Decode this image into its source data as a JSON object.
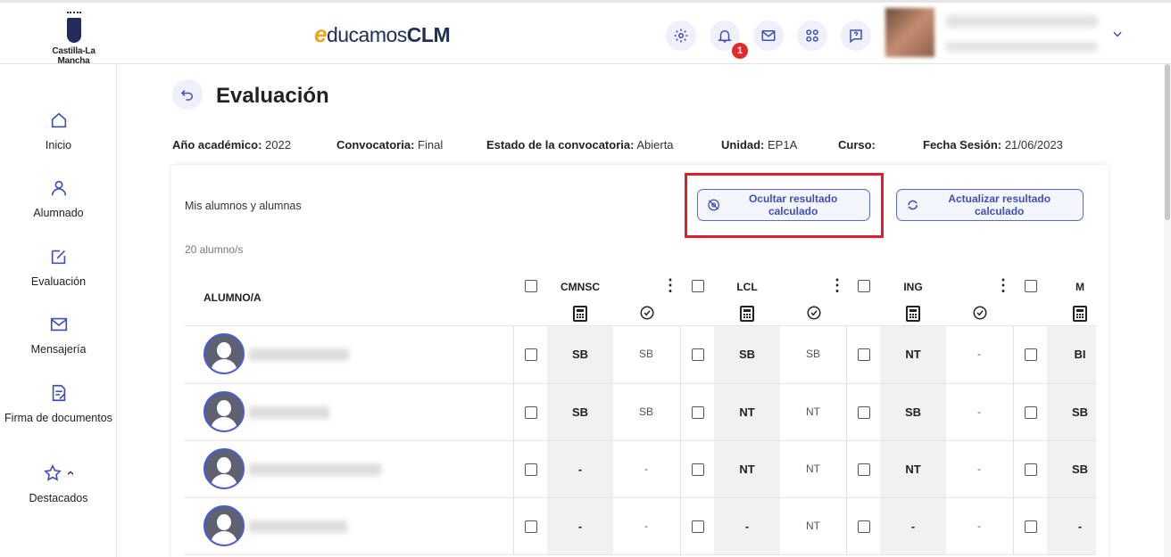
{
  "header": {
    "region_logo_text": "Castilla-La Mancha",
    "brand": {
      "e": "e",
      "mid": "ducamos",
      "bold": "CLM"
    },
    "notifications_count": "1",
    "icons": [
      "gear-icon",
      "bell-icon",
      "mail-icon",
      "apps-icon",
      "help-chat-icon",
      "chevron-down-icon"
    ]
  },
  "sidebar": {
    "items": [
      {
        "label": "Inicio",
        "icon": "home-icon"
      },
      {
        "label": "Alumnado",
        "icon": "user-icon"
      },
      {
        "label": "Evaluación",
        "icon": "edit-icon"
      },
      {
        "label": "Mensajería",
        "icon": "mail-icon"
      },
      {
        "label": "Firma de documentos",
        "icon": "sign-doc-icon"
      },
      {
        "label": "Destacados",
        "icon": "star-icon"
      }
    ]
  },
  "page": {
    "title": "Evaluación",
    "info": [
      {
        "label": "Año académico:",
        "value": "2022"
      },
      {
        "label": "Convocatoria:",
        "value": "Final"
      },
      {
        "label": "Estado de la convocatoria:",
        "value": "Abierta"
      },
      {
        "label": "Unidad:",
        "value": "EP1A"
      },
      {
        "label": "Curso:",
        "value": ""
      },
      {
        "label": "Fecha Sesión:",
        "value": "21/06/2023"
      }
    ]
  },
  "card": {
    "label": "Mis alumnos y alumnas",
    "count": "20 alumno/s",
    "hide_button": "Ocultar resultado calculado",
    "update_button": "Actualizar resultado calculado",
    "highlight_color": "#e01e2a"
  },
  "table": {
    "student_header": "ALUMNO/A",
    "subjects": [
      "CMNSC",
      "LCL",
      "ING",
      "M"
    ],
    "rows": [
      {
        "grades": [
          [
            "SB",
            "SB"
          ],
          [
            "SB",
            "SB"
          ],
          [
            "NT",
            "-"
          ],
          [
            "BI",
            ""
          ]
        ]
      },
      {
        "grades": [
          [
            "SB",
            "SB"
          ],
          [
            "NT",
            "NT"
          ],
          [
            "SB",
            "-"
          ],
          [
            "SB",
            ""
          ]
        ]
      },
      {
        "grades": [
          [
            "-",
            "-"
          ],
          [
            "NT",
            "NT"
          ],
          [
            "NT",
            "-"
          ],
          [
            "SB",
            ""
          ]
        ]
      },
      {
        "grades": [
          [
            "-",
            "-"
          ],
          [
            "-",
            "NT"
          ],
          [
            "-",
            "-"
          ],
          [
            "-",
            ""
          ]
        ]
      }
    ]
  },
  "colors": {
    "accent": "#4c5bd4",
    "button_bg": "#f3f5ff",
    "badge": "#e02b2b"
  }
}
